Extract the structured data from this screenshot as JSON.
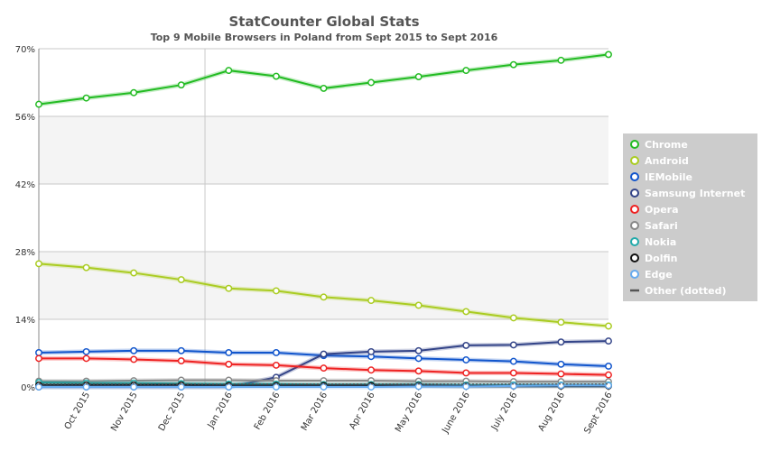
{
  "chart_data": {
    "type": "line",
    "title": "StatCounter Global Stats",
    "subtitle": "Top 9 Mobile Browsers in Poland from Sept 2015 to Sept 2016",
    "categories": [
      "Sept 2015",
      "Oct 2015",
      "Nov 2015",
      "Dec 2015",
      "Jan 2016",
      "Feb 2016",
      "Mar 2016",
      "Apr 2016",
      "May 2016",
      "June 2016",
      "July 2016",
      "Aug 2016",
      "Sept 2016"
    ],
    "x_tick_labels": [
      "",
      "Oct 2015",
      "Nov 2015",
      "Dec 2015",
      "Jan 2016",
      "Feb 2016",
      "Mar 2016",
      "Apr 2016",
      "May 2016",
      "June 2016",
      "July 2016",
      "Aug 2016",
      "Sept 2016"
    ],
    "ylim": [
      0,
      70
    ],
    "y_ticks": [
      0,
      14,
      28,
      42,
      56,
      70
    ],
    "y_tick_labels": [
      "0%",
      "14%",
      "28%",
      "42%",
      "56%",
      "70%"
    ],
    "legend_position": "right",
    "series": [
      {
        "name": "Chrome",
        "color": "#22bb22",
        "values": [
          58.5,
          59.8,
          60.9,
          62.5,
          65.5,
          64.3,
          61.8,
          63.0,
          64.2,
          65.5,
          66.7,
          67.6,
          68.8
        ]
      },
      {
        "name": "Android",
        "color": "#aacc22",
        "values": [
          25.5,
          24.7,
          23.6,
          22.2,
          20.4,
          19.9,
          18.6,
          17.9,
          16.9,
          15.6,
          14.3,
          13.4,
          12.6
        ]
      },
      {
        "name": "IEMobile",
        "color": "#1155cc",
        "values": [
          7.1,
          7.3,
          7.5,
          7.5,
          7.1,
          7.1,
          6.5,
          6.3,
          5.9,
          5.6,
          5.3,
          4.7,
          4.3
        ]
      },
      {
        "name": "Samsung Internet",
        "color": "#334488",
        "values": [
          0,
          0,
          0,
          0,
          0,
          2.0,
          6.8,
          7.3,
          7.5,
          8.6,
          8.7,
          9.3,
          9.5
        ]
      },
      {
        "name": "Opera",
        "color": "#ee2222",
        "values": [
          5.9,
          5.9,
          5.7,
          5.4,
          4.7,
          4.5,
          3.9,
          3.5,
          3.3,
          2.9,
          2.9,
          2.7,
          2.5
        ]
      },
      {
        "name": "Safari",
        "color": "#888888",
        "values": [
          1.2,
          1.2,
          1.3,
          1.4,
          1.4,
          1.3,
          1.3,
          1.3,
          1.2,
          1.2,
          1.1,
          1.1,
          1.1
        ]
      },
      {
        "name": "Nokia",
        "color": "#22aaaa",
        "values": [
          0.9,
          0.8,
          0.8,
          0.7,
          0.6,
          0.6,
          0.5,
          0.5,
          0.5,
          0.4,
          0.4,
          0.4,
          0.4
        ]
      },
      {
        "name": "Dolfin",
        "color": "#111111",
        "values": [
          0.4,
          0.4,
          0.4,
          0.4,
          0.3,
          0.3,
          0.3,
          0.3,
          0.3,
          0.2,
          0.2,
          0.2,
          0.2
        ]
      },
      {
        "name": "Edge",
        "color": "#66aaee",
        "values": [
          0,
          0,
          0,
          0,
          0,
          0,
          0,
          0,
          0.1,
          0.1,
          0.2,
          0.3,
          0.3
        ]
      },
      {
        "name": "Other (dotted)",
        "color": "#555555",
        "dotted": true,
        "values": [
          0.6,
          0.6,
          0.6,
          0.6,
          0.6,
          0.6,
          0.6,
          0.6,
          0.6,
          0.6,
          0.6,
          0.6,
          0.6
        ]
      }
    ]
  }
}
